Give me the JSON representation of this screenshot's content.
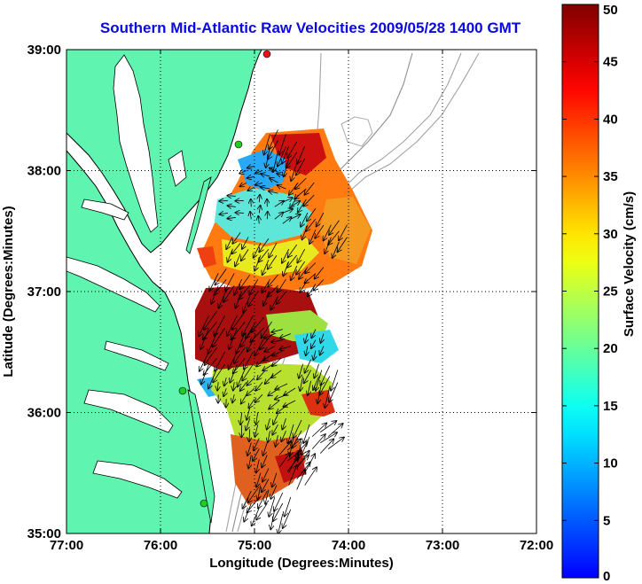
{
  "chart_data": {
    "type": "heatmap",
    "title": "Southern Mid-Atlantic Raw Velocities 2009/05/28 1400 GMT",
    "xlabel": "Longitude (Degrees:Minutes)",
    "ylabel": "Latitude (Degrees:Minutes)",
    "xlim": [
      -77,
      -72
    ],
    "ylim": [
      35,
      39
    ],
    "x_ticks": [
      -77,
      -76,
      -75,
      -74,
      -73,
      -72
    ],
    "x_tick_labels": [
      "77:00",
      "76:00",
      "75:00",
      "74:00",
      "73:00",
      "72:00"
    ],
    "y_ticks": [
      35,
      36,
      37,
      38,
      39
    ],
    "y_tick_labels": [
      "35:00",
      "36:00",
      "37:00",
      "38:00",
      "39:00"
    ],
    "grid": true,
    "colorbar": {
      "label": "Surface Velocity (cm/s)",
      "range": [
        0,
        50
      ],
      "ticks": [
        0,
        5,
        10,
        15,
        20,
        25,
        30,
        35,
        40,
        45,
        50
      ],
      "tick_labels": [
        "0",
        "5",
        "10",
        "15",
        "20",
        "25",
        "30",
        "35",
        "40",
        "45",
        "50"
      ]
    },
    "velocity_field": [
      {
        "lon": -74.75,
        "lat": 38.25,
        "speed": 45,
        "dir": 250
      },
      {
        "lon": -74.55,
        "lat": 38.15,
        "speed": 38,
        "dir": 245
      },
      {
        "lon": -75.0,
        "lat": 37.95,
        "speed": 10,
        "dir": 200
      },
      {
        "lon": -74.75,
        "lat": 37.9,
        "speed": 15,
        "dir": 160
      },
      {
        "lon": -74.45,
        "lat": 37.85,
        "speed": 30,
        "dir": 230
      },
      {
        "lon": -75.2,
        "lat": 37.7,
        "speed": 12,
        "dir": 180
      },
      {
        "lon": -74.95,
        "lat": 37.65,
        "speed": 10,
        "dir": 90
      },
      {
        "lon": -74.7,
        "lat": 37.65,
        "speed": 18,
        "dir": 30
      },
      {
        "lon": -74.35,
        "lat": 37.6,
        "speed": 30,
        "dir": 240
      },
      {
        "lon": -74.1,
        "lat": 37.5,
        "speed": 35,
        "dir": 240
      },
      {
        "lon": -75.15,
        "lat": 37.4,
        "speed": 25,
        "dir": 240
      },
      {
        "lon": -74.85,
        "lat": 37.35,
        "speed": 32,
        "dir": 240
      },
      {
        "lon": -74.55,
        "lat": 37.3,
        "speed": 30,
        "dir": 240
      },
      {
        "lon": -74.35,
        "lat": 37.15,
        "speed": 28,
        "dir": 230
      },
      {
        "lon": -75.3,
        "lat": 37.1,
        "speed": 40,
        "dir": 240
      },
      {
        "lon": -75.05,
        "lat": 37.05,
        "speed": 35,
        "dir": 240
      },
      {
        "lon": -74.75,
        "lat": 37.05,
        "speed": 30,
        "dir": 235
      },
      {
        "lon": -75.4,
        "lat": 36.75,
        "speed": 48,
        "dir": 240
      },
      {
        "lon": -75.1,
        "lat": 36.75,
        "speed": 48,
        "dir": 240
      },
      {
        "lon": -74.9,
        "lat": 36.7,
        "speed": 40,
        "dir": 235
      },
      {
        "lon": -74.7,
        "lat": 36.6,
        "speed": 20,
        "dir": 200
      },
      {
        "lon": -74.35,
        "lat": 36.6,
        "speed": 15,
        "dir": 250
      },
      {
        "lon": -75.4,
        "lat": 36.45,
        "speed": 45,
        "dir": 240
      },
      {
        "lon": -75.1,
        "lat": 36.45,
        "speed": 40,
        "dir": 240
      },
      {
        "lon": -74.8,
        "lat": 36.4,
        "speed": 22,
        "dir": 220
      },
      {
        "lon": -74.4,
        "lat": 36.35,
        "speed": 28,
        "dir": 250
      },
      {
        "lon": -74.2,
        "lat": 36.3,
        "speed": 45,
        "dir": 250
      },
      {
        "lon": -75.3,
        "lat": 36.2,
        "speed": 12,
        "dir": 260
      },
      {
        "lon": -75.0,
        "lat": 36.2,
        "speed": 18,
        "dir": 230
      },
      {
        "lon": -74.65,
        "lat": 36.15,
        "speed": 25,
        "dir": 210
      },
      {
        "lon": -75.05,
        "lat": 35.95,
        "speed": 22,
        "dir": 260
      },
      {
        "lon": -74.75,
        "lat": 35.9,
        "speed": 20,
        "dir": 250
      },
      {
        "lon": -74.5,
        "lat": 35.85,
        "speed": 40,
        "dir": 250
      },
      {
        "lon": -74.95,
        "lat": 35.7,
        "speed": 25,
        "dir": 250
      },
      {
        "lon": -74.65,
        "lat": 35.6,
        "speed": 35,
        "dir": 45
      },
      {
        "lon": -74.3,
        "lat": 35.75,
        "speed": 40,
        "dir": 40
      },
      {
        "lon": -74.85,
        "lat": 35.45,
        "speed": 28,
        "dir": 250
      },
      {
        "lon": -74.55,
        "lat": 35.45,
        "speed": 45,
        "dir": 60
      },
      {
        "lon": -74.95,
        "lat": 35.3,
        "speed": 40,
        "dir": 240
      },
      {
        "lon": -74.7,
        "lat": 35.25,
        "speed": 42,
        "dir": 250
      }
    ]
  },
  "colors": {
    "land": "#5ff5b0",
    "coastline": "#000000",
    "bathymetry": "#999999",
    "site_green": "#22cc22",
    "site_red": "#ee1111",
    "title": "#0a0adc"
  }
}
